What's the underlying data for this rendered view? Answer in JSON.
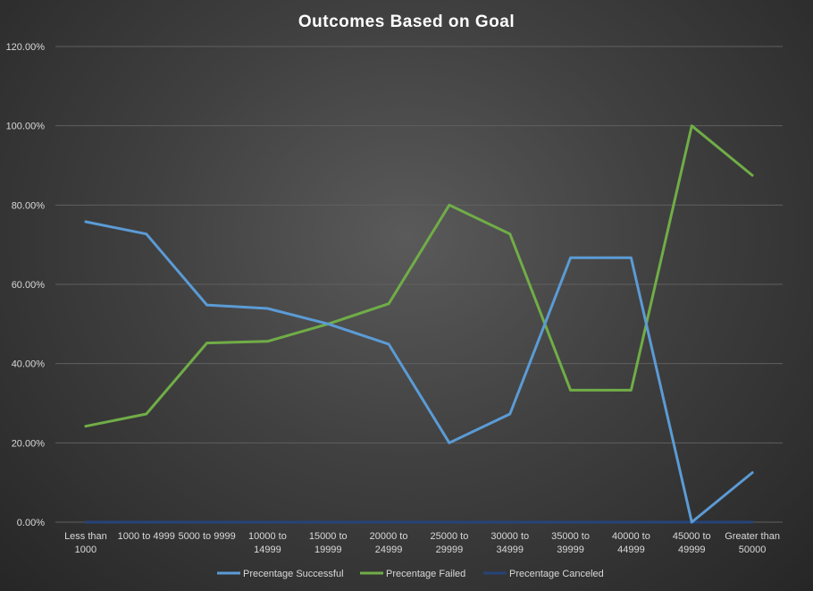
{
  "chart_data": {
    "type": "line",
    "title": "Outcomes  Based  on  Goal",
    "xlabel": "",
    "ylabel": "",
    "categories": [
      [
        "Less than",
        "1000"
      ],
      [
        "1000 to 4999"
      ],
      [
        "5000 to 9999"
      ],
      [
        "10000 to",
        "14999"
      ],
      [
        "15000 to",
        "19999"
      ],
      [
        "20000 to",
        "24999"
      ],
      [
        "25000 to",
        "29999"
      ],
      [
        "30000 to",
        "34999"
      ],
      [
        "35000 to",
        "39999"
      ],
      [
        "40000 to",
        "44999"
      ],
      [
        "45000 to",
        "49999"
      ],
      [
        "Greater than",
        "50000"
      ]
    ],
    "ylim": [
      0,
      120
    ],
    "yticks": [
      "0.00%",
      "20.00%",
      "40.00%",
      "60.00%",
      "80.00%",
      "100.00%",
      "120.00%"
    ],
    "grid": true,
    "legend_position": "bottom",
    "series": [
      {
        "name": "Precentage Successful",
        "color": "#5b9bd5",
        "values": [
          75.8,
          72.7,
          54.8,
          53.9,
          50.0,
          44.9,
          20.0,
          27.3,
          66.7,
          66.7,
          0.0,
          12.5
        ]
      },
      {
        "name": "Precentage Failed",
        "color": "#70ad47",
        "values": [
          24.2,
          27.3,
          45.2,
          45.6,
          50.0,
          55.1,
          80.0,
          72.7,
          33.3,
          33.3,
          100.0,
          87.5
        ]
      },
      {
        "name": "Precentage Canceled",
        "color": "#264478",
        "values": [
          0,
          0,
          0,
          0,
          0,
          0,
          0,
          0,
          0,
          0,
          0,
          0
        ]
      }
    ]
  }
}
